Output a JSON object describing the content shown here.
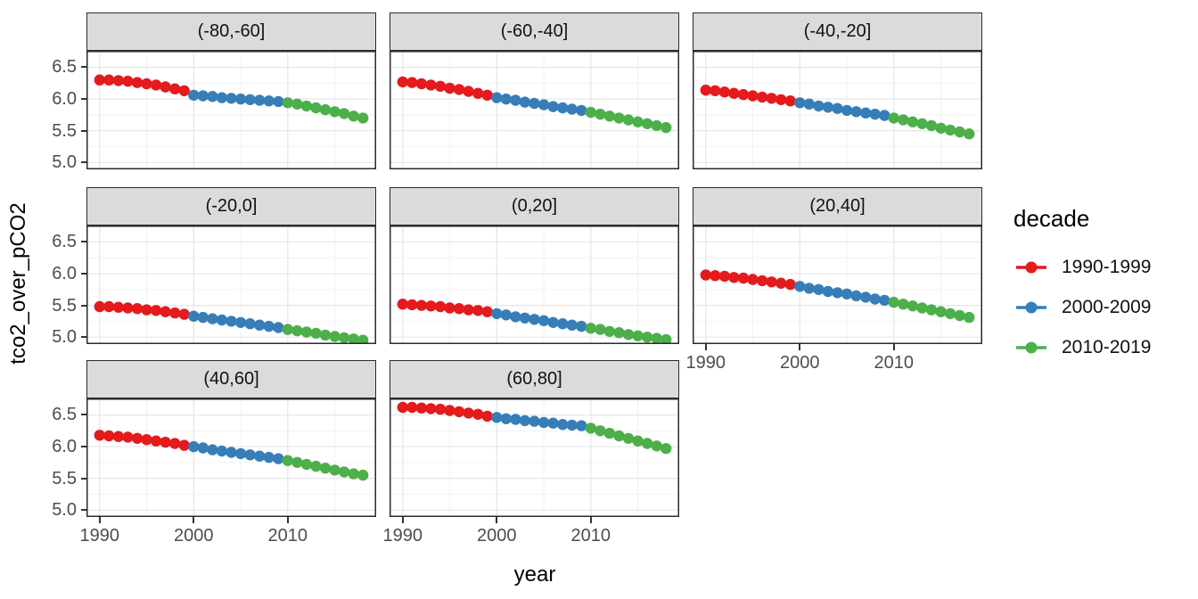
{
  "figure": {
    "y_axis_title": "tco2_over_pCO2",
    "x_axis_title": "year"
  },
  "legend": {
    "title": "decade",
    "entries": [
      {
        "label": "1990-1999",
        "color": "#E41A1C"
      },
      {
        "label": "2000-2009",
        "color": "#377EB8"
      },
      {
        "label": "2010-2019",
        "color": "#4DAF4A"
      }
    ]
  },
  "chart_data": {
    "type": "line",
    "title": "",
    "xlabel": "year",
    "ylabel": "tco2_over_pCO2",
    "legend_title": "decade",
    "legend_position": "right",
    "grid": true,
    "facet_layout": {
      "ncol": 3,
      "nrow": 3
    },
    "x": [
      1990,
      1991,
      1992,
      1993,
      1994,
      1995,
      1996,
      1997,
      1998,
      1999,
      2000,
      2001,
      2002,
      2003,
      2004,
      2005,
      2006,
      2007,
      2008,
      2009,
      2010,
      2011,
      2012,
      2013,
      2014,
      2015,
      2016,
      2017,
      2018
    ],
    "x_ticks": [
      1990,
      2000,
      2010
    ],
    "y_ticks": [
      "5.0",
      "5.5",
      "6.0",
      "6.5"
    ],
    "y_tick_values": [
      5.0,
      5.5,
      6.0,
      6.5
    ],
    "y_minor_values": [
      5.25,
      5.75,
      6.25,
      6.75
    ],
    "x_minor_values": [
      1995,
      2005,
      2015
    ],
    "xlim": [
      1988.6,
      2019.4
    ],
    "ylim": [
      4.89,
      6.76
    ],
    "series": [
      {
        "name": "1990-1999",
        "year_range": [
          1990,
          1999
        ],
        "color": "#E41A1C"
      },
      {
        "name": "2000-2009",
        "year_range": [
          2000,
          2009
        ],
        "color": "#377EB8"
      },
      {
        "name": "2010-2019",
        "year_range": [
          2010,
          2018
        ],
        "color": "#4DAF4A"
      }
    ],
    "facets": [
      {
        "label": "(-80,-60]",
        "values": [
          6.3,
          6.3,
          6.29,
          6.28,
          6.26,
          6.24,
          6.22,
          6.19,
          6.16,
          6.13,
          6.06,
          6.05,
          6.04,
          6.02,
          6.01,
          6.0,
          5.99,
          5.98,
          5.97,
          5.96,
          5.94,
          5.92,
          5.89,
          5.86,
          5.83,
          5.8,
          5.77,
          5.73,
          5.7
        ]
      },
      {
        "label": "(-60,-40]",
        "values": [
          6.27,
          6.26,
          6.24,
          6.22,
          6.2,
          6.17,
          6.15,
          6.12,
          6.09,
          6.06,
          6.02,
          6.0,
          5.98,
          5.95,
          5.93,
          5.91,
          5.88,
          5.86,
          5.84,
          5.82,
          5.79,
          5.76,
          5.73,
          5.7,
          5.67,
          5.64,
          5.61,
          5.58,
          5.55
        ]
      },
      {
        "label": "(-40,-20]",
        "values": [
          6.14,
          6.13,
          6.11,
          6.09,
          6.07,
          6.05,
          6.03,
          6.01,
          5.99,
          5.97,
          5.94,
          5.92,
          5.89,
          5.87,
          5.85,
          5.82,
          5.8,
          5.78,
          5.76,
          5.74,
          5.7,
          5.67,
          5.64,
          5.61,
          5.58,
          5.54,
          5.51,
          5.48,
          5.45
        ]
      },
      {
        "label": "(-20,0]",
        "values": [
          5.48,
          5.48,
          5.47,
          5.46,
          5.45,
          5.43,
          5.42,
          5.4,
          5.38,
          5.36,
          5.33,
          5.31,
          5.29,
          5.27,
          5.25,
          5.23,
          5.21,
          5.19,
          5.17,
          5.15,
          5.12,
          5.1,
          5.08,
          5.06,
          5.03,
          5.01,
          4.99,
          4.97,
          4.95
        ]
      },
      {
        "label": "(0,20]",
        "values": [
          5.52,
          5.51,
          5.5,
          5.49,
          5.48,
          5.46,
          5.45,
          5.43,
          5.42,
          5.4,
          5.37,
          5.35,
          5.32,
          5.3,
          5.28,
          5.26,
          5.23,
          5.21,
          5.19,
          5.17,
          5.14,
          5.12,
          5.09,
          5.07,
          5.04,
          5.02,
          5.0,
          4.98,
          4.96
        ]
      },
      {
        "label": "(20,40]",
        "values": [
          5.98,
          5.97,
          5.96,
          5.94,
          5.93,
          5.91,
          5.89,
          5.87,
          5.85,
          5.83,
          5.8,
          5.77,
          5.75,
          5.72,
          5.7,
          5.68,
          5.65,
          5.63,
          5.6,
          5.58,
          5.55,
          5.52,
          5.49,
          5.46,
          5.43,
          5.4,
          5.37,
          5.34,
          5.31
        ]
      },
      {
        "label": "(40,60]",
        "values": [
          6.18,
          6.17,
          6.16,
          6.15,
          6.13,
          6.11,
          6.09,
          6.07,
          6.05,
          6.02,
          6.0,
          5.98,
          5.95,
          5.93,
          5.91,
          5.89,
          5.87,
          5.85,
          5.83,
          5.81,
          5.78,
          5.75,
          5.72,
          5.69,
          5.66,
          5.63,
          5.6,
          5.57,
          5.55
        ]
      },
      {
        "label": "(60,80]",
        "values": [
          6.62,
          6.62,
          6.61,
          6.6,
          6.59,
          6.57,
          6.55,
          6.53,
          6.51,
          6.48,
          6.46,
          6.44,
          6.43,
          6.41,
          6.4,
          6.38,
          6.37,
          6.35,
          6.34,
          6.33,
          6.29,
          6.25,
          6.21,
          6.17,
          6.13,
          6.09,
          6.05,
          6.01,
          5.97
        ]
      }
    ]
  }
}
